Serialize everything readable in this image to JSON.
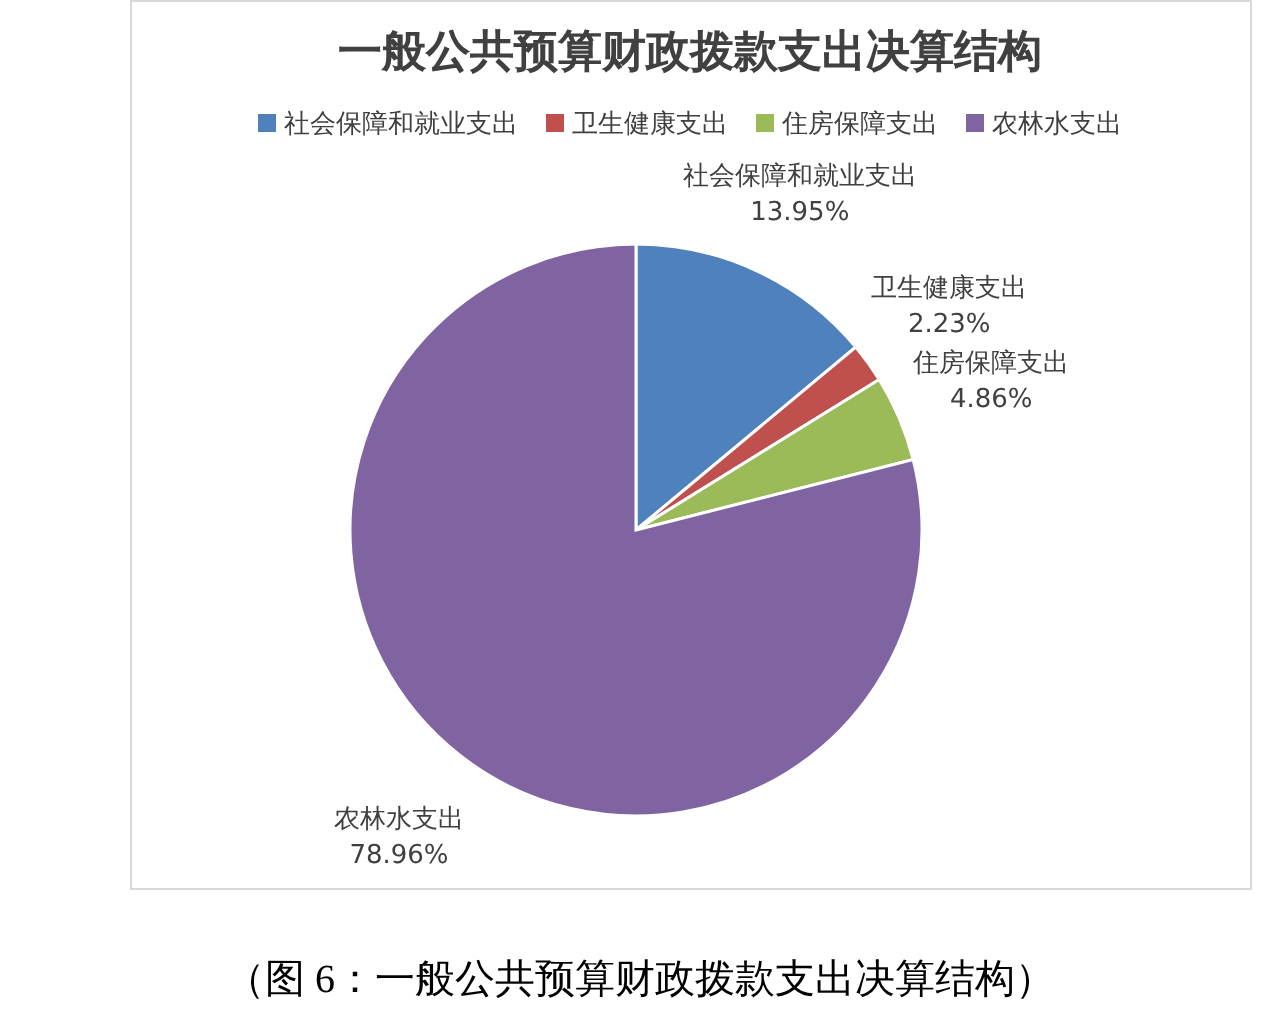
{
  "chart_data": {
    "type": "pie",
    "title": "一般公共预算财政拨款支出决算结构",
    "categories": [
      "社会保障和就业支出",
      "卫生健康支出",
      "住房保障支出",
      "农林水支出"
    ],
    "values": [
      13.95,
      2.23,
      4.86,
      78.96
    ],
    "value_labels": [
      "13.95%",
      "2.23%",
      "4.86%",
      "78.96%"
    ],
    "colors": [
      "#4f81bd",
      "#c0504d",
      "#9bbb59",
      "#8064a2"
    ],
    "legend": "top",
    "annotations": [
      "（图 6：一般公共预算财政拨款支出决算结构）"
    ]
  }
}
